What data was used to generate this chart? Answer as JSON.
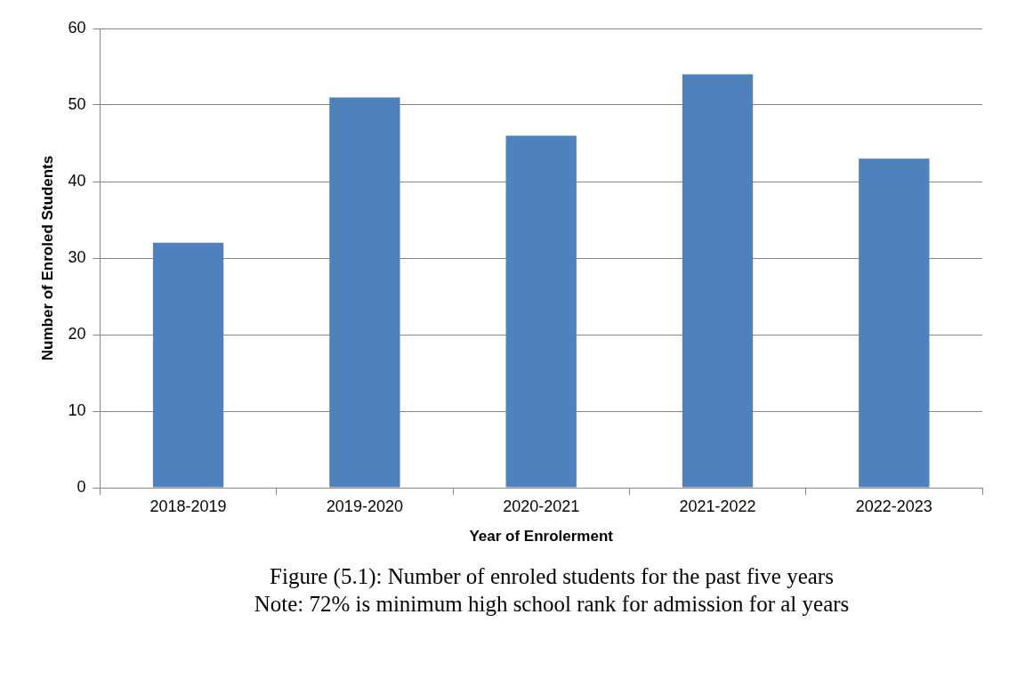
{
  "chart_data": {
    "type": "bar",
    "xlabel": "Year of Enrolerment",
    "ylabel": "Number of Enroled Students",
    "categories": [
      "2018-2019",
      "2019-2020",
      "2020-2021",
      "2021-2022",
      "2022-2023"
    ],
    "values": [
      32,
      51,
      46,
      54,
      43
    ],
    "color": "#4f81bd",
    "ylim": [
      0,
      60
    ],
    "yticks": [
      0,
      10,
      20,
      30,
      40,
      50,
      60
    ],
    "grid": "y",
    "annotations": [
      "Figure (5.1): Number of enroled students for the past five years",
      "Note: 72% is minimum high school rank for admission for al years"
    ]
  }
}
